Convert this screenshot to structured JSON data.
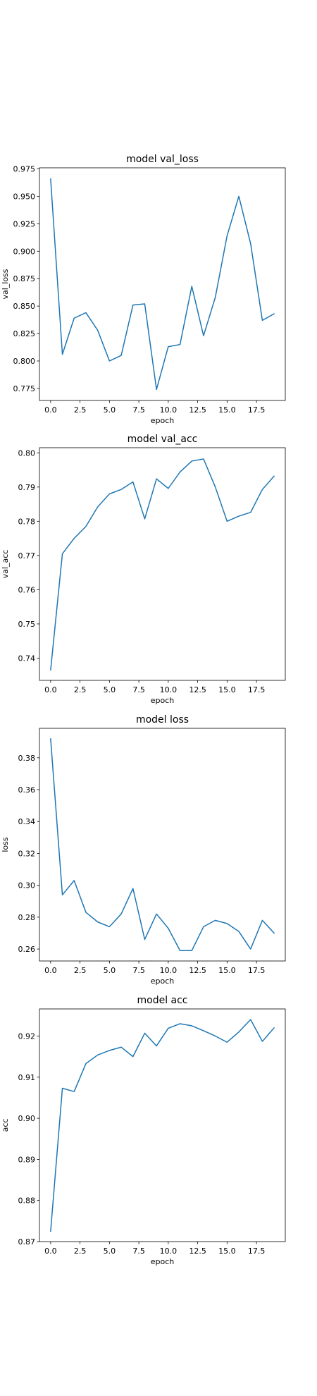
{
  "chart_data": [
    {
      "type": "line",
      "title": "model val_loss",
      "xlabel": "epoch",
      "ylabel": "val_loss",
      "x": [
        0,
        1,
        2,
        3,
        4,
        5,
        6,
        7,
        8,
        9,
        10,
        11,
        12,
        13,
        14,
        15,
        16,
        17,
        18,
        19
      ],
      "series": [
        {
          "values": [
            0.966,
            0.806,
            0.839,
            0.844,
            0.828,
            0.8,
            0.805,
            0.851,
            0.852,
            0.774,
            0.813,
            0.815,
            0.868,
            0.823,
            0.858,
            0.914,
            0.95,
            0.907,
            0.837,
            0.843
          ]
        }
      ],
      "xlim": [
        -0.95,
        19.95
      ],
      "ylim": [
        0.764,
        0.976
      ],
      "xticks": [
        0,
        2.5,
        5,
        7.5,
        10,
        12.5,
        15,
        17.5
      ],
      "xtick_labels": [
        "0.0",
        "2.5",
        "5.0",
        "7.5",
        "10.0",
        "12.5",
        "15.0",
        "17.5"
      ],
      "yticks": [
        0.775,
        0.8,
        0.825,
        0.85,
        0.875,
        0.9,
        0.925,
        0.95,
        0.975
      ],
      "ytick_labels": [
        "0.775",
        "0.800",
        "0.825",
        "0.850",
        "0.875",
        "0.900",
        "0.925",
        "0.950",
        "0.975"
      ],
      "grid": false,
      "line_color": "#1f77b4"
    },
    {
      "type": "line",
      "title": "model val_acc",
      "xlabel": "epoch",
      "ylabel": "val_acc",
      "x": [
        0,
        1,
        2,
        3,
        4,
        5,
        6,
        7,
        8,
        9,
        10,
        11,
        12,
        13,
        14,
        15,
        16,
        17,
        18,
        19
      ],
      "series": [
        {
          "values": [
            0.7365,
            0.7705,
            0.775,
            0.7785,
            0.7842,
            0.788,
            0.7893,
            0.7915,
            0.7807,
            0.7924,
            0.7896,
            0.7944,
            0.7976,
            0.7982,
            0.79,
            0.78,
            0.7815,
            0.7826,
            0.7893,
            0.7932
          ]
        }
      ],
      "xlim": [
        -0.95,
        19.95
      ],
      "ylim": [
        0.7335,
        0.8015
      ],
      "xticks": [
        0,
        2.5,
        5,
        7.5,
        10,
        12.5,
        15,
        17.5
      ],
      "xtick_labels": [
        "0.0",
        "2.5",
        "5.0",
        "7.5",
        "10.0",
        "12.5",
        "15.0",
        "17.5"
      ],
      "yticks": [
        0.74,
        0.75,
        0.76,
        0.77,
        0.78,
        0.79,
        0.8
      ],
      "ytick_labels": [
        "0.74",
        "0.75",
        "0.76",
        "0.77",
        "0.78",
        "0.79",
        "0.80"
      ],
      "grid": false,
      "line_color": "#1f77b4"
    },
    {
      "type": "line",
      "title": "model loss",
      "xlabel": "epoch",
      "ylabel": "loss",
      "x": [
        0,
        1,
        2,
        3,
        4,
        5,
        6,
        7,
        8,
        9,
        10,
        11,
        12,
        13,
        14,
        15,
        16,
        17,
        18,
        19
      ],
      "series": [
        {
          "values": [
            0.392,
            0.294,
            0.303,
            0.283,
            0.277,
            0.274,
            0.282,
            0.298,
            0.266,
            0.282,
            0.273,
            0.259,
            0.259,
            0.274,
            0.278,
            0.276,
            0.271,
            0.26,
            0.278,
            0.27
          ]
        }
      ],
      "xlim": [
        -0.95,
        19.95
      ],
      "ylim": [
        0.2525,
        0.3985
      ],
      "xticks": [
        0,
        2.5,
        5,
        7.5,
        10,
        12.5,
        15,
        17.5
      ],
      "xtick_labels": [
        "0.0",
        "2.5",
        "5.0",
        "7.5",
        "10.0",
        "12.5",
        "15.0",
        "17.5"
      ],
      "yticks": [
        0.26,
        0.28,
        0.3,
        0.32,
        0.34,
        0.36,
        0.38
      ],
      "ytick_labels": [
        "0.26",
        "0.28",
        "0.30",
        "0.32",
        "0.34",
        "0.36",
        "0.38"
      ],
      "grid": false,
      "line_color": "#1f77b4"
    },
    {
      "type": "line",
      "title": "model acc",
      "xlabel": "epoch",
      "ylabel": "acc",
      "x": [
        0,
        1,
        2,
        3,
        4,
        5,
        6,
        7,
        8,
        9,
        10,
        11,
        12,
        13,
        14,
        15,
        16,
        17,
        18,
        19
      ],
      "series": [
        {
          "values": [
            0.8725,
            0.9073,
            0.9065,
            0.9133,
            0.9154,
            0.9165,
            0.9173,
            0.915,
            0.9207,
            0.9176,
            0.9219,
            0.923,
            0.9225,
            0.9213,
            0.92,
            0.9185,
            0.921,
            0.924,
            0.9187,
            0.922
          ]
        }
      ],
      "xlim": [
        -0.95,
        19.95
      ],
      "ylim": [
        0.87,
        0.9266
      ],
      "xticks": [
        0,
        2.5,
        5,
        7.5,
        10,
        12.5,
        15,
        17.5
      ],
      "xtick_labels": [
        "0.0",
        "2.5",
        "5.0",
        "7.5",
        "10.0",
        "12.5",
        "15.0",
        "17.5"
      ],
      "yticks": [
        0.87,
        0.88,
        0.89,
        0.9,
        0.91,
        0.92
      ],
      "ytick_labels": [
        "0.87",
        "0.88",
        "0.89",
        "0.90",
        "0.91",
        "0.92"
      ],
      "grid": false,
      "line_color": "#1f77b4"
    }
  ]
}
